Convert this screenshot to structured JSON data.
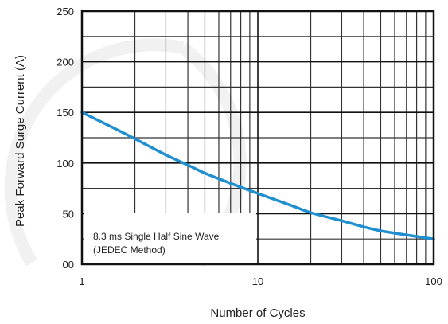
{
  "chart_data": {
    "type": "line",
    "xscale": "log",
    "yscale": "linear",
    "xlabel": "Number of Cycles",
    "ylabel": "Peak Forward Surge Current (A)",
    "xlim": [
      1,
      100
    ],
    "ylim": [
      0,
      250
    ],
    "x_ticks": [
      1,
      10,
      100
    ],
    "x_tick_labels": [
      "1",
      "10",
      "100"
    ],
    "y_ticks": [
      0,
      50,
      100,
      150,
      200,
      250
    ],
    "y_tick_labels": [
      "00",
      "50",
      "100",
      "150",
      "200",
      "250"
    ],
    "grid": true,
    "annotation_lines": [
      "8.3 ms Single Half Sine Wave",
      "(JEDEC Method)"
    ],
    "series": [
      {
        "color": "#1f8fd0",
        "x": [
          1,
          1.5,
          2,
          3,
          4,
          5,
          7,
          10,
          15,
          20,
          30,
          40,
          50,
          70,
          100
        ],
        "y": [
          150,
          135,
          124,
          108,
          98,
          90,
          80,
          70,
          59,
          51,
          43,
          37,
          33,
          29,
          25
        ]
      }
    ]
  }
}
